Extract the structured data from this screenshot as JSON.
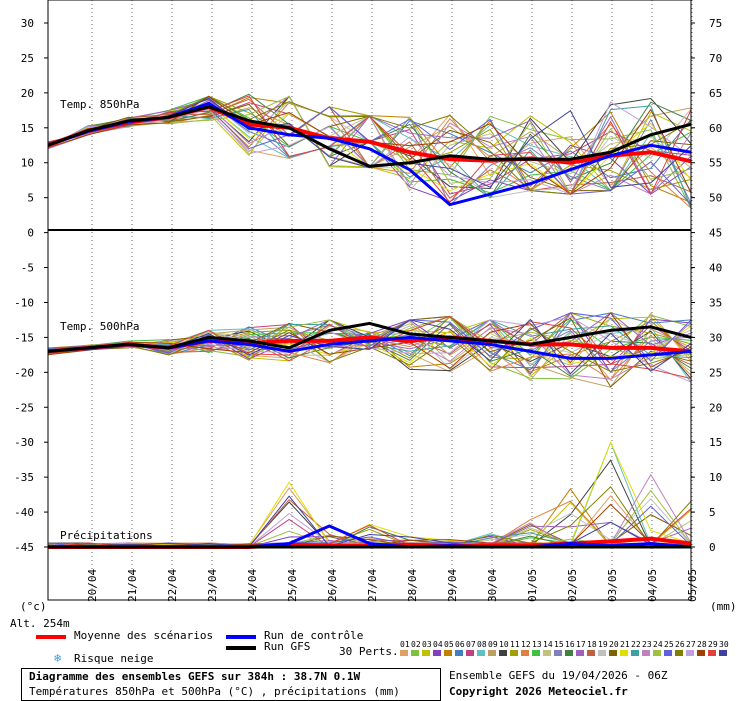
{
  "chart_data": {
    "type": "line",
    "x_dates": [
      "20/04",
      "21/04",
      "22/04",
      "23/04",
      "24/04",
      "25/04",
      "26/04",
      "27/04",
      "28/04",
      "29/04",
      "30/04",
      "01/05",
      "02/05",
      "03/05",
      "04/05",
      "05/05"
    ],
    "left_ticks": [
      30,
      25,
      20,
      15,
      10,
      5,
      0,
      -5,
      -10,
      -15,
      -20,
      -25,
      -30,
      -35,
      -40,
      -45
    ],
    "right_ticks": [
      75,
      70,
      65,
      60,
      55,
      50,
      45,
      40,
      35,
      30,
      25,
      20,
      15,
      10,
      5,
      0
    ],
    "panel_labels": {
      "t850": "Temp. 850hPa",
      "t500": "Temp. 500hPa",
      "precip": "Précipitations"
    },
    "left_unit": "(°c)",
    "right_unit": "(mm)",
    "altitude": "Alt. 254m",
    "series": [
      {
        "name": "Moyenne des scénarios",
        "role": "mean",
        "color": "#ff0000",
        "t850": [
          12.5,
          14.6,
          15.8,
          16.5,
          18.0,
          15.5,
          15.0,
          13.5,
          13.0,
          11.5,
          10.5,
          10.3,
          10.6,
          10.0,
          11.0,
          11.5,
          10.2
        ],
        "t500": [
          -17.0,
          -16.5,
          -16.0,
          -16.5,
          -15.5,
          -15.8,
          -15.5,
          -15.5,
          -15.0,
          -15.5,
          -15.0,
          -15.5,
          -16.0,
          -16.0,
          -16.5,
          -16.5,
          -17.0
        ],
        "precip": [
          0,
          0,
          0,
          0,
          0,
          0,
          0.3,
          0.2,
          0.2,
          0.3,
          0.2,
          0.2,
          0.2,
          0.5,
          0.8,
          1.2,
          0.5
        ]
      },
      {
        "name": "Run de contrôle",
        "role": "control",
        "color": "#0000ff",
        "t850": [
          12.5,
          14.5,
          15.9,
          16.5,
          18.5,
          15.0,
          14.0,
          13.5,
          12.0,
          9.0,
          4.0,
          5.5,
          7.0,
          9.0,
          11.0,
          12.5,
          11.5
        ],
        "t500": [
          -17.0,
          -16.5,
          -16.0,
          -16.5,
          -15.5,
          -16.0,
          -17.0,
          -16.0,
          -15.5,
          -15.0,
          -15.5,
          -16.0,
          -17.0,
          -18.0,
          -18.0,
          -17.5,
          -17.0
        ],
        "precip": [
          0,
          0,
          0,
          0,
          0,
          0,
          0.5,
          3.0,
          0.5,
          0,
          0.2,
          0,
          0,
          0.5,
          0.2,
          0.5,
          0
        ]
      },
      {
        "name": "Run GFS",
        "role": "gfs",
        "color": "#000000",
        "t850": [
          12.5,
          14.6,
          16.0,
          16.5,
          18.0,
          16.0,
          15.0,
          12.0,
          9.5,
          10.0,
          11.0,
          10.5,
          10.5,
          10.5,
          11.5,
          14.0,
          15.5
        ],
        "t500": [
          -17.0,
          -16.5,
          -16.0,
          -16.5,
          -15.0,
          -15.5,
          -16.5,
          -14.0,
          -13.0,
          -14.5,
          -15.0,
          -15.5,
          -16.0,
          -15.0,
          -14.0,
          -13.5,
          -15.0
        ],
        "precip": [
          0,
          0,
          0,
          0,
          0,
          0,
          0,
          0,
          0,
          0,
          0,
          0,
          0,
          0,
          0,
          0,
          0
        ]
      }
    ],
    "ensemble_spread": {
      "t850_min": [
        12.0,
        14.0,
        15.0,
        15.5,
        15.5,
        11.0,
        8.5,
        8.0,
        6.0,
        4.5,
        3.5,
        5.0,
        6.0,
        5.5,
        6.0,
        5.5,
        3.5
      ],
      "t850_max": [
        13.0,
        15.5,
        16.5,
        17.5,
        19.5,
        20.0,
        19.5,
        18.0,
        17.0,
        16.5,
        17.0,
        18.0,
        20.0,
        21.0,
        22.0,
        21.0,
        20.5
      ],
      "t500_min": [
        -17.5,
        -17.0,
        -16.5,
        -17.5,
        -17.5,
        -18.5,
        -19.0,
        -20.0,
        -19.5,
        -21.0,
        -22.0,
        -22.0,
        -22.5,
        -23.0,
        -23.5,
        -22.5,
        -22.0
      ],
      "t500_max": [
        -16.5,
        -16.0,
        -15.5,
        -15.0,
        -14.0,
        -13.5,
        -13.0,
        -12.5,
        -12.5,
        -12.5,
        -12.0,
        -12.5,
        -12.0,
        -11.5,
        -11.5,
        -10.5,
        -12.5
      ],
      "precip_max": [
        0,
        0,
        0,
        0,
        0,
        0,
        9.5,
        2.0,
        3.5,
        1.5,
        2.0,
        2.0,
        4.0,
        8.5,
        16.5,
        12.5,
        7.0
      ]
    }
  },
  "legend": {
    "mean": "Moyenne des scénarios",
    "control": "Run de contrôle",
    "gfs": "Run GFS",
    "snow": "Risque neige",
    "perts_label": "30 Perts.",
    "perts": [
      "01",
      "02",
      "03",
      "04",
      "05",
      "06",
      "07",
      "08",
      "09",
      "10",
      "11",
      "12",
      "13",
      "14",
      "15",
      "16",
      "17",
      "18",
      "19",
      "20",
      "21",
      "22",
      "23",
      "24",
      "25",
      "26",
      "27",
      "28",
      "29",
      "30"
    ],
    "pert_colors": [
      "#e0a060",
      "#80c040",
      "#c0c000",
      "#8040c0",
      "#c08000",
      "#4080c0",
      "#c04080",
      "#60c0c0",
      "#c0a060",
      "#404040",
      "#a0a000",
      "#e08040",
      "#40c040",
      "#c0c080",
      "#8080c0",
      "#408040",
      "#a060c0",
      "#c06040",
      "#c0c0c0",
      "#806000",
      "#e0e000",
      "#40a0a0",
      "#c080c0",
      "#a0c040",
      "#6060e0",
      "#808000",
      "#c0a0e0",
      "#a04000",
      "#e04040",
      "#4040a0"
    ]
  },
  "caption": {
    "line1": "Diagramme des ensembles GEFS sur 384h : 38.7N 0.1W",
    "line2": "Températures 850hPa et 500hPa (°C) , précipitations (mm)",
    "run": "Ensemble GEFS du 19/04/2026 - 06Z",
    "copyright": "Copyright 2026 Meteociel.fr"
  }
}
